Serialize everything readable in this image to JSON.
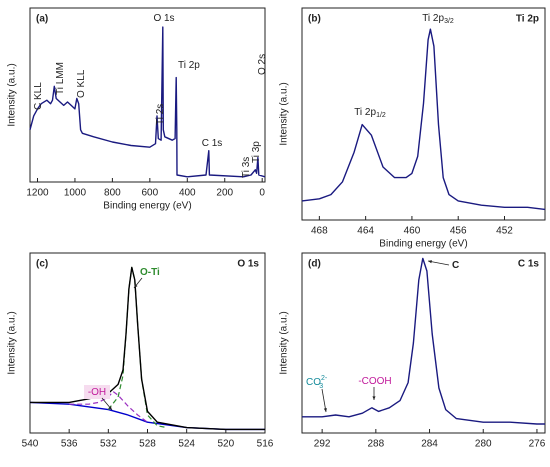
{
  "chart_data": [
    {
      "type": "line",
      "panel_label": "(a)",
      "x_label": "Binding energy (eV)",
      "y_label": "Intensity (a.u.)",
      "xlim": [
        1240,
        -15
      ],
      "ylim": [
        0,
        100
      ],
      "xticks": [
        1200,
        1000,
        800,
        600,
        400,
        200,
        0
      ],
      "series": [
        {
          "color": "#1a1a80",
          "dash": false,
          "x": [
            1240,
            1220,
            1200,
            1180,
            1150,
            1130,
            1120,
            1110,
            1100,
            1080,
            1060,
            1040,
            1020,
            1000,
            990,
            980,
            970,
            960,
            900,
            800,
            700,
            600,
            570,
            562,
            555,
            540,
            531,
            528,
            520,
            480,
            465,
            459,
            456,
            455,
            400,
            300,
            285,
            282,
            100,
            60,
            37,
            30,
            23,
            18,
            -15
          ],
          "values": [
            30,
            38,
            42,
            45,
            47,
            45,
            47,
            55,
            48,
            46,
            44,
            46,
            44,
            42,
            48,
            45,
            30,
            28,
            26,
            23,
            21,
            20,
            22,
            38,
            25,
            24,
            89,
            30,
            26,
            24,
            25,
            60,
            30,
            4,
            3,
            4,
            18,
            4,
            3,
            4,
            7,
            5,
            14,
            4,
            3
          ]
        }
      ],
      "annotations": [
        {
          "text": "C KLL"
        },
        {
          "text": "Ti LMM"
        },
        {
          "text": "O KLL"
        },
        {
          "text": "Ti 2s"
        },
        {
          "text": "O 1s"
        },
        {
          "text": "Ti 2p"
        },
        {
          "text": "C 1s"
        },
        {
          "text": "Ti 3s"
        },
        {
          "text": "Ti 3p"
        },
        {
          "text": "O 2s"
        }
      ]
    },
    {
      "type": "line",
      "panel_label": "(b)",
      "title": "Ti 2p",
      "x_label": "Binding energy (eV)",
      "y_label": "Intensity (a.u.)",
      "xlim": [
        469.5,
        448.5
      ],
      "ylim": [
        0,
        100
      ],
      "xticks": [
        468,
        464,
        460,
        456,
        452
      ],
      "series": [
        {
          "color": "#1a1a80",
          "dash": false,
          "x": [
            469.5,
            468,
            467,
            466,
            465,
            464.3,
            463.5,
            462.5,
            461.5,
            460.5,
            460,
            459.5,
            459,
            458.6,
            458.4,
            458.1,
            457.7,
            457.3,
            456.8,
            456,
            454,
            452,
            450,
            448.5
          ],
          "values": [
            9,
            10,
            12,
            18,
            32,
            45,
            40,
            25,
            20,
            20,
            22,
            30,
            55,
            85,
            90,
            82,
            45,
            20,
            12,
            9,
            7,
            6,
            6,
            5
          ]
        }
      ],
      "annotations": [
        {
          "text": "Ti 2p",
          "sub": "1/2"
        },
        {
          "text": "Ti 2p",
          "sub": "3/2"
        }
      ]
    },
    {
      "type": "line",
      "panel_label": "(c)",
      "title": "O 1s",
      "y_label": "Intensity (a.u.)",
      "xlim": [
        540,
        516
      ],
      "ylim": [
        0,
        100
      ],
      "xticks": [
        540,
        536,
        532,
        528,
        524,
        520,
        516
      ],
      "series": [
        {
          "color": "#0000cc",
          "dash": false,
          "x": [
            540,
            536,
            532,
            530,
            528,
            524,
            520,
            516
          ],
          "values": [
            17,
            16,
            13,
            10,
            6,
            3,
            2,
            2
          ]
        },
        {
          "color": "#9b30c0",
          "dash": true,
          "x": [
            536,
            534,
            533,
            532,
            531.5,
            531,
            530,
            529,
            528
          ],
          "values": [
            16,
            16,
            17,
            20,
            23,
            21,
            15,
            10,
            6
          ]
        },
        {
          "color": "#2e8b2e",
          "dash": true,
          "x": [
            532,
            531,
            530.5,
            530.2,
            529.9,
            529.6,
            529.3,
            529,
            528.6,
            528,
            527,
            526
          ],
          "values": [
            13,
            20,
            32,
            55,
            80,
            92,
            85,
            60,
            30,
            10,
            4,
            3
          ]
        },
        {
          "color": "#000000",
          "dash": false,
          "x": [
            540,
            538,
            536,
            534,
            532,
            531,
            530.5,
            530.2,
            529.9,
            529.6,
            529.3,
            529,
            528.6,
            528,
            527,
            524,
            520,
            516
          ],
          "values": [
            17,
            17,
            17,
            19,
            22,
            27,
            35,
            55,
            80,
            92,
            85,
            60,
            30,
            12,
            6,
            3,
            2,
            2
          ]
        }
      ],
      "annotations": [
        {
          "text": "O-Ti",
          "color": "#2e8b2e"
        },
        {
          "text": "-OH",
          "color": "#c0189a"
        }
      ]
    },
    {
      "type": "line",
      "panel_label": "(d)",
      "title": "C 1s",
      "y_label": "Intensity (a.u.)",
      "xlim": [
        293.5,
        275.4
      ],
      "ylim": [
        0,
        100
      ],
      "xticks": [
        292,
        288,
        284,
        280,
        276
      ],
      "series": [
        {
          "color": "#1a1a80",
          "dash": false,
          "x": [
            293.5,
            292,
            291,
            290,
            289,
            288.3,
            287.8,
            287,
            286.2,
            285.6,
            285.2,
            284.8,
            284.5,
            284.2,
            283.8,
            283.3,
            282.8,
            282,
            280,
            278,
            276,
            275.4
          ],
          "values": [
            9,
            9,
            10,
            9,
            11,
            14,
            12,
            14,
            18,
            28,
            50,
            85,
            97,
            90,
            55,
            25,
            13,
            8,
            6,
            6,
            5,
            5
          ]
        }
      ],
      "annotations": [
        {
          "text": "C"
        },
        {
          "text": "-COOH",
          "color": "#c0189a"
        },
        {
          "text": "CO",
          "sub": "3",
          "sup": "2-",
          "color": "#138a9a"
        }
      ]
    }
  ]
}
